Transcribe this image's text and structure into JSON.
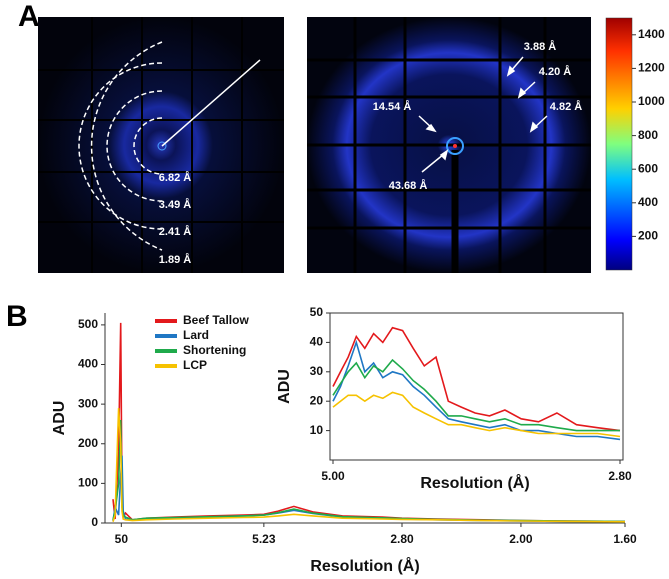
{
  "panel_labels": [
    "A",
    "B"
  ],
  "panel_a": {
    "left_image": {
      "labels": [
        "6.82 Å",
        "3.49 Å",
        "2.41 Å",
        "1.89 Å"
      ]
    },
    "right_image": {
      "labels": [
        "3.88 Å",
        "4.20 Å",
        "14.54 Å",
        "4.82 Å",
        "43.68 Å"
      ]
    }
  },
  "colorbar": {
    "ylim": [
      0,
      1500
    ],
    "yticks": [
      200,
      400,
      600,
      800,
      1000,
      1200,
      1400
    ]
  },
  "chart_data": [
    {
      "type": "line",
      "ylabel": "ADU",
      "xlabel": "Resolution (Å)",
      "xscale": "reciprocal",
      "xlim": [
        100,
        1.6
      ],
      "ylim": [
        0,
        530
      ],
      "xticks": [
        50,
        5.23,
        {
          "value": 2.8,
          "label": "2.80"
        },
        {
          "value": 2,
          "label": "2.00"
        },
        {
          "value": 1.6,
          "label": "1.60"
        }
      ],
      "yticks": [
        0,
        100,
        200,
        300,
        400,
        500
      ],
      "legend": "upper-left",
      "x": [
        100,
        80,
        60,
        52,
        48,
        45,
        40,
        30,
        20,
        12,
        8,
        6,
        5.23,
        4.8,
        4.4,
        4,
        3.5,
        3,
        2.8,
        2.5,
        2.2,
        2,
        1.8,
        1.6
      ],
      "series": [
        {
          "name": "Beef Tallow",
          "color": "#e3191c",
          "values": [
            60,
            10,
            180,
            505,
            60,
            15,
            25,
            8,
            12,
            15,
            18,
            20,
            22,
            30,
            42,
            28,
            18,
            15,
            12,
            10,
            8,
            6,
            5,
            4
          ]
        },
        {
          "name": "Lard",
          "color": "#1f77c4",
          "values": [
            5,
            40,
            20,
            120,
            170,
            30,
            10,
            8,
            10,
            12,
            15,
            18,
            20,
            25,
            32,
            24,
            15,
            12,
            10,
            8,
            6,
            5,
            4,
            3
          ]
        },
        {
          "name": "Shortening",
          "color": "#1faa4b",
          "values": [
            8,
            30,
            100,
            260,
            40,
            20,
            15,
            8,
            12,
            14,
            16,
            18,
            20,
            26,
            35,
            25,
            16,
            13,
            11,
            9,
            7,
            6,
            5,
            4
          ]
        },
        {
          "name": "LCP",
          "color": "#f6c200",
          "values": [
            3,
            20,
            290,
            200,
            30,
            10,
            8,
            6,
            8,
            10,
            12,
            14,
            15,
            18,
            22,
            18,
            12,
            10,
            9,
            8,
            6,
            5,
            4,
            3
          ]
        }
      ]
    },
    {
      "type": "line",
      "ylabel": "ADU",
      "xlabel": "Resolution (Å)",
      "xscale": "reciprocal",
      "xlim": [
        5,
        2.8
      ],
      "ylim": [
        0,
        50
      ],
      "xticks": [
        {
          "value": 5,
          "label": "5.00"
        },
        {
          "value": 2.8,
          "label": "2.80"
        }
      ],
      "yticks": [
        10,
        20,
        30,
        40,
        50
      ],
      "x": [
        5,
        4.9,
        4.8,
        4.7,
        4.6,
        4.5,
        4.4,
        4.3,
        4.2,
        4.1,
        4,
        3.9,
        3.8,
        3.7,
        3.6,
        3.5,
        3.4,
        3.3,
        3.2,
        3.1,
        3,
        2.9,
        2.8
      ],
      "series": [
        {
          "name": "Beef Tallow",
          "color": "#e3191c",
          "values": [
            25,
            30,
            35,
            42,
            38,
            43,
            40,
            45,
            44,
            38,
            32,
            35,
            20,
            18,
            16,
            15,
            17,
            14,
            13,
            16,
            12,
            11,
            10
          ]
        },
        {
          "name": "Lard",
          "color": "#1f77c4",
          "values": [
            20,
            25,
            32,
            40,
            30,
            33,
            28,
            30,
            29,
            25,
            22,
            18,
            14,
            13,
            12,
            11,
            12,
            10,
            10,
            9,
            8,
            8,
            7
          ]
        },
        {
          "name": "Shortening",
          "color": "#1faa4b",
          "values": [
            22,
            26,
            30,
            33,
            28,
            32,
            30,
            34,
            31,
            27,
            24,
            20,
            15,
            15,
            14,
            13,
            14,
            12,
            12,
            11,
            10,
            10,
            10
          ]
        },
        {
          "name": "LCP",
          "color": "#f6c200",
          "values": [
            18,
            20,
            22,
            22,
            20,
            22,
            21,
            23,
            22,
            18,
            16,
            14,
            12,
            12,
            11,
            10,
            11,
            10,
            9,
            9,
            9,
            9,
            8
          ]
        }
      ]
    }
  ]
}
